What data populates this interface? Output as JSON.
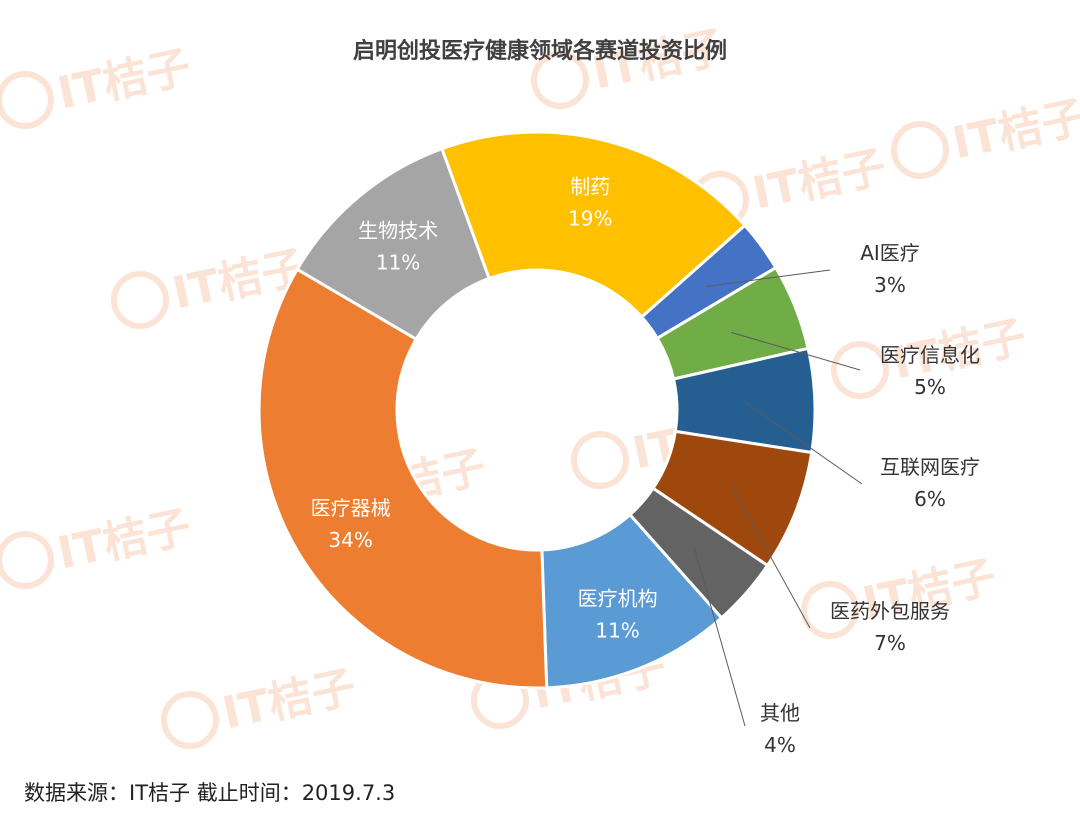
{
  "chart_data": {
    "type": "donut",
    "title": "启明创投医疗健康领域各赛道投资比例",
    "slices": [
      {
        "label": "制药",
        "value": 19,
        "pct_label": "19%",
        "color": "#FFC000"
      },
      {
        "label": "AI医疗",
        "value": 3,
        "pct_label": "3%",
        "color": "#4472C4"
      },
      {
        "label": "医疗信息化",
        "value": 5,
        "pct_label": "5%",
        "color": "#70AD47"
      },
      {
        "label": "互联网医疗",
        "value": 6,
        "pct_label": "6%",
        "color": "#255E91"
      },
      {
        "label": "医药外包服务",
        "value": 7,
        "pct_label": "7%",
        "color": "#9E480E"
      },
      {
        "label": "其他",
        "value": 4,
        "pct_label": "4%",
        "color": "#636363"
      },
      {
        "label": "医疗机构",
        "value": 11,
        "pct_label": "11%",
        "color": "#5B9BD5"
      },
      {
        "label": "医疗器械",
        "value": 34,
        "pct_label": "34%",
        "color": "#ED7D31"
      },
      {
        "label": "生物技术",
        "value": 11,
        "pct_label": "11%",
        "color": "#A5A5A5"
      }
    ]
  },
  "watermark": "IT桔子",
  "footer": "数据来源：IT桔子  截止时间：2019.7.3"
}
